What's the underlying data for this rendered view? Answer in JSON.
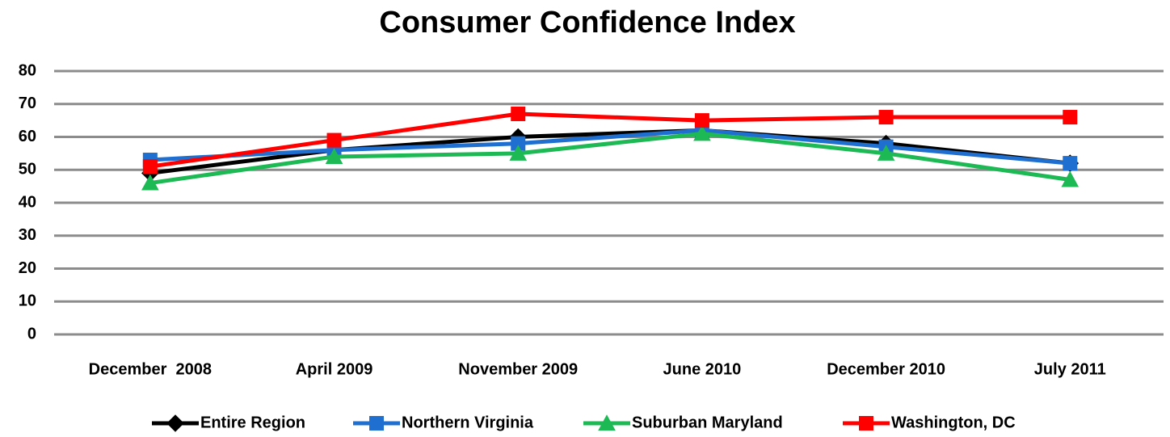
{
  "chart_data": {
    "type": "line",
    "title": "Consumer Confidence Index",
    "categories": [
      "December  2008",
      "April 2009",
      "November 2009",
      "June 2010",
      "December 2010",
      "July 2011"
    ],
    "series": [
      {
        "name": "Entire Region",
        "color": "#000000",
        "marker": "diamond",
        "values": [
          49,
          56,
          60,
          62,
          58,
          52
        ]
      },
      {
        "name": "Northern Virginia",
        "color": "#1f6fd1",
        "marker": "square",
        "values": [
          53,
          56,
          58,
          62,
          57,
          52
        ]
      },
      {
        "name": "Suburban Maryland",
        "color": "#1db954",
        "marker": "triangle",
        "values": [
          46,
          54,
          55,
          61,
          55,
          47
        ]
      },
      {
        "name": "Washington, DC",
        "color": "#ff0000",
        "marker": "square",
        "values": [
          51,
          59,
          67,
          65,
          66,
          66
        ]
      }
    ],
    "ylim": [
      0,
      80
    ],
    "yticks": [
      0,
      10,
      20,
      30,
      40,
      50,
      60,
      70,
      80
    ],
    "grid": true,
    "legend": "bottom"
  }
}
